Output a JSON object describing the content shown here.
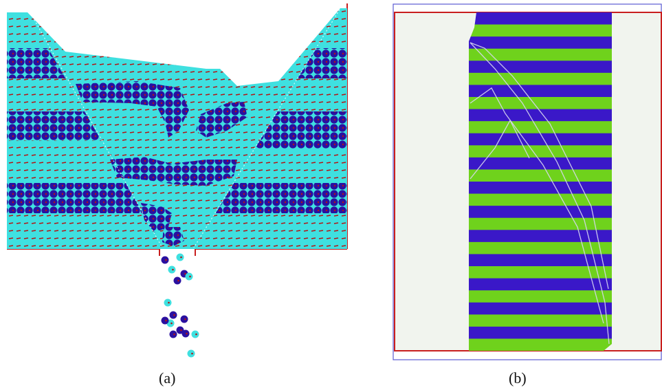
{
  "figure": {
    "panels": [
      {
        "id": "a",
        "caption": "(a)"
      },
      {
        "id": "b",
        "caption": "(b)"
      }
    ]
  },
  "colors": {
    "cyan_particle": "#3fe0e0",
    "blue_particle": "#2a10a0",
    "red_dot": "#b41414",
    "green_band": "#6fd21c",
    "blue_band": "#3a18c8",
    "frame_red": "#c81e1e",
    "frame_blue": "#5a5ad2",
    "background_b": "#f1f4ee"
  }
}
